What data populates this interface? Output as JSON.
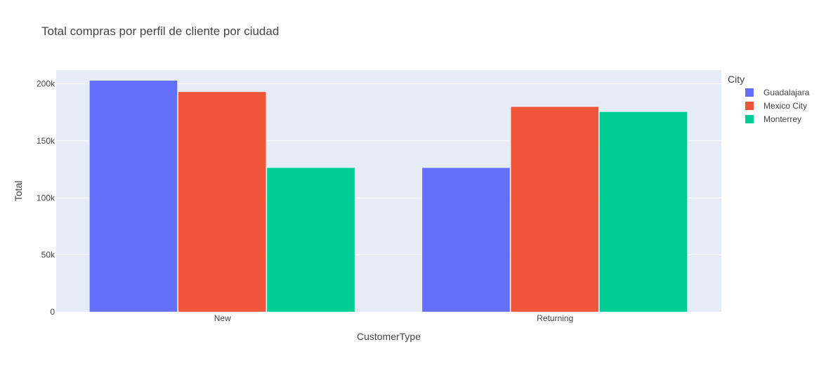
{
  "chart_data": {
    "type": "bar",
    "title": "Total compras por perfil de cliente por ciudad",
    "xlabel": "CustomerType",
    "ylabel": "Total",
    "categories": [
      "New",
      "Returning"
    ],
    "series": [
      {
        "name": "Guadalajara",
        "color": "#636efa",
        "values": [
          203000,
          126500
        ]
      },
      {
        "name": "Mexico City",
        "color": "#ef553b",
        "values": [
          193000,
          180000
        ]
      },
      {
        "name": "Monterrey",
        "color": "#00cc96",
        "values": [
          126500,
          175500
        ]
      }
    ],
    "ylim": [
      0,
      212000
    ],
    "yticks": [
      {
        "value": 0,
        "label": "0"
      },
      {
        "value": 50000,
        "label": "50k"
      },
      {
        "value": 100000,
        "label": "100k"
      },
      {
        "value": 150000,
        "label": "150k"
      },
      {
        "value": 200000,
        "label": "200k"
      }
    ],
    "legend": {
      "title": "City",
      "placement": "right"
    },
    "grid": true,
    "plot_background": "#e5ecf6"
  }
}
